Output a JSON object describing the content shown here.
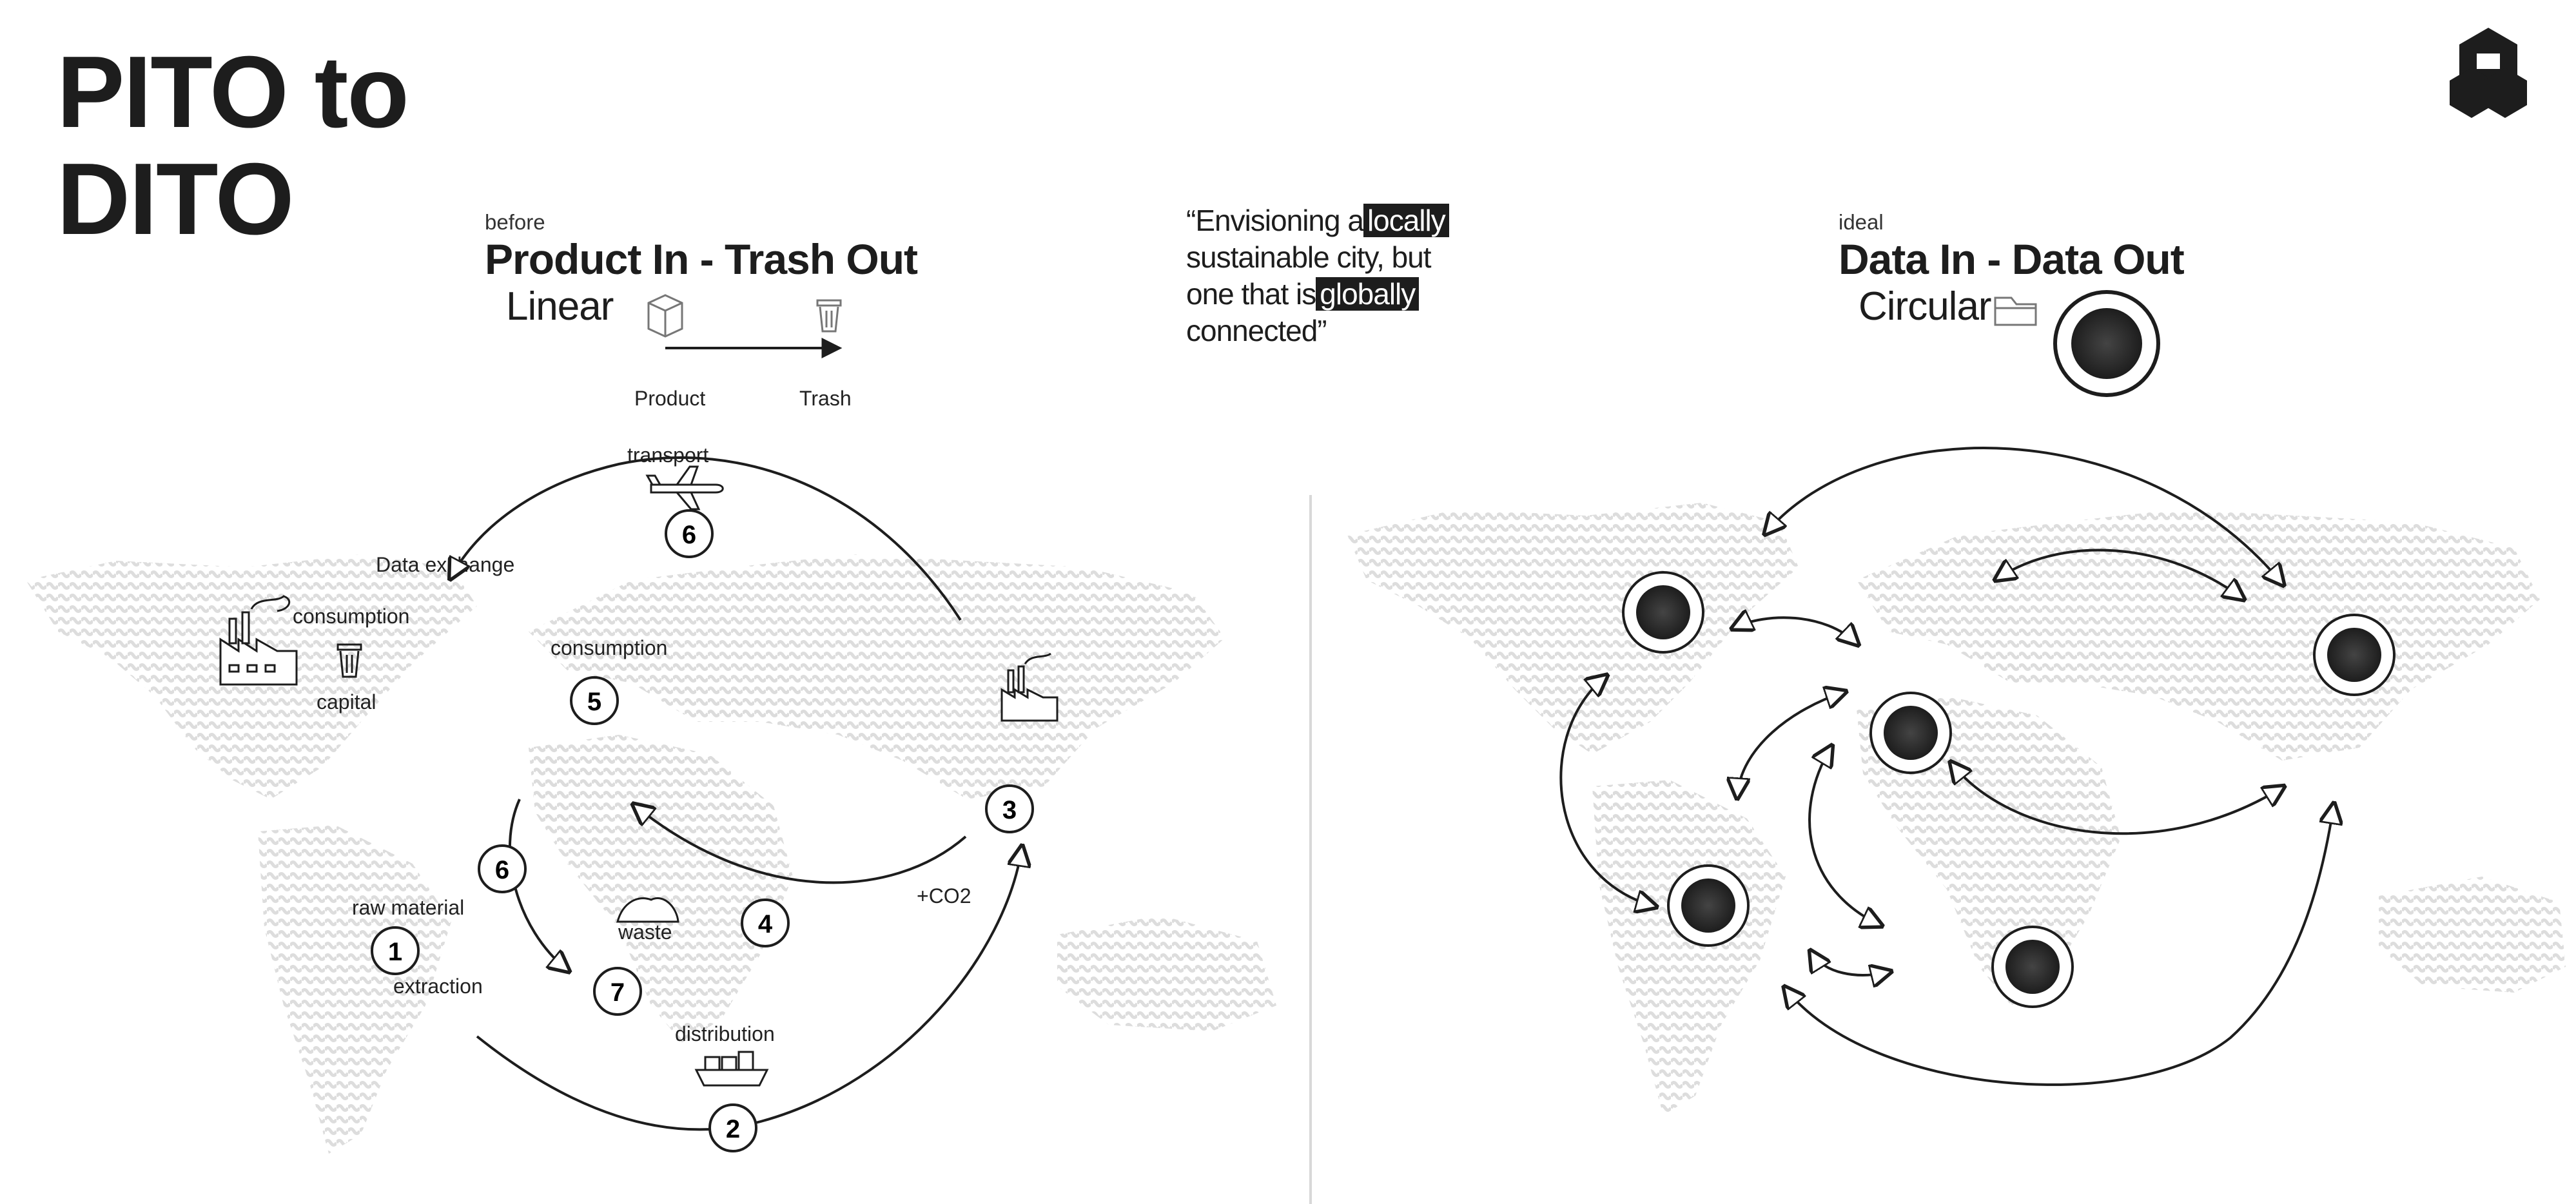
{
  "title": {
    "line1": "PITO to",
    "line2": "DITO"
  },
  "left": {
    "kicker": "before",
    "heading": "Product In - Trash Out",
    "model": "Linear",
    "legend_from": "Product",
    "legend_to": "Trash",
    "labels": {
      "transport": "transport",
      "data_exchange": "Data exchange",
      "consumption_left": "consumption",
      "capital": "capital",
      "consumption_mid": "consumption",
      "raw_material": "raw material",
      "extraction": "extraction",
      "waste": "waste",
      "co2": "+CO2",
      "distribution": "distribution"
    },
    "nodes": [
      "6",
      "5",
      "3",
      "6",
      "1",
      "4",
      "7",
      "2"
    ],
    "icons": [
      "box-icon",
      "trash-icon",
      "airplane-icon",
      "factory-icon",
      "ship-icon",
      "waste-pile-icon"
    ]
  },
  "quote": {
    "p1": "“Envisioning a",
    "h1": "locally",
    "p2": "sustainable city, but",
    "p3": "one that is",
    "h2": "globally",
    "p4": "connected”"
  },
  "right": {
    "kicker": "ideal",
    "heading": "Data In - Data Out",
    "model": "Circular",
    "icons": [
      "folder-icon",
      "data-hub-icon"
    ]
  },
  "colors": {
    "ink": "#1d1d1d",
    "map": "#e6e6e6",
    "divider": "#d8d8d8"
  }
}
